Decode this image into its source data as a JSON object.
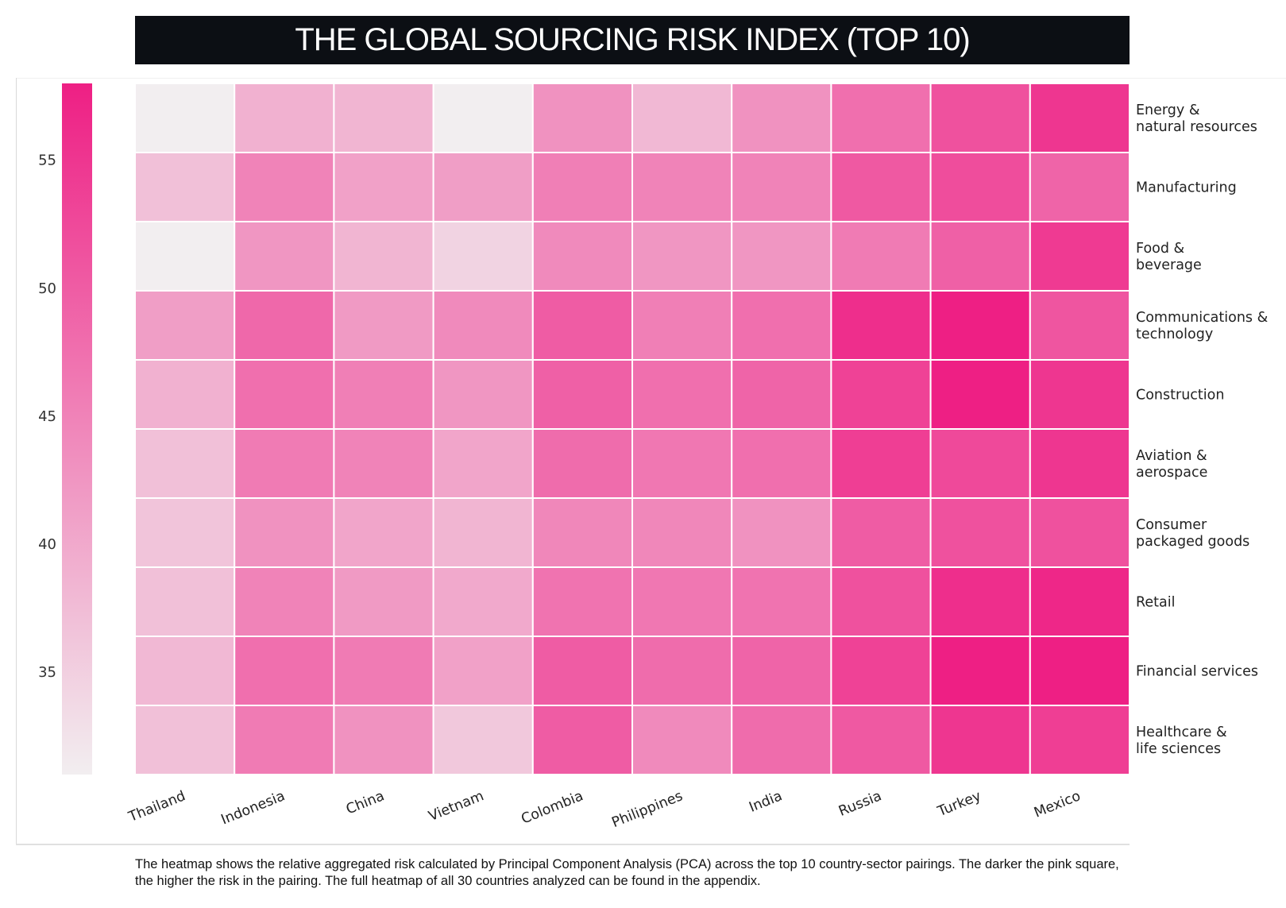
{
  "title": "THE GLOBAL SOURCING RISK INDEX (TOP 10)",
  "caption": "The heatmap shows the relative aggregated risk calculated by Principal Component Analysis (PCA) across the top 10 country-sector pairings. The darker the pink square, the higher the risk in the pairing. The full heatmap of all 30 countries analyzed can be found in the appendix.",
  "colors": {
    "low": "#f2eef0",
    "high": "#ee1f84"
  },
  "chart_data": {
    "type": "heatmap",
    "x_categories": [
      "Thailand",
      "Indonesia",
      "China",
      "Vietnam",
      "Colombia",
      "Philippines",
      "India",
      "Russia",
      "Turkey",
      "Mexico"
    ],
    "y_categories": [
      [
        "Energy &",
        "natural resources"
      ],
      [
        "Manufacturing"
      ],
      [
        "Food &",
        "beverage"
      ],
      [
        "Communications &",
        "technology"
      ],
      [
        "Construction"
      ],
      [
        "Aviation &",
        "aerospace"
      ],
      [
        "Consumer",
        "packaged goods"
      ],
      [
        "Retail"
      ],
      [
        "Financial services"
      ],
      [
        "Healthcare &",
        "life sciences"
      ]
    ],
    "values": [
      [
        30.5,
        39.0,
        38.5,
        30.5,
        43.0,
        38.0,
        43.0,
        47.5,
        51.5,
        55.0
      ],
      [
        37.0,
        45.0,
        41.0,
        41.5,
        45.5,
        45.0,
        45.0,
        50.5,
        52.0,
        49.0
      ],
      [
        31.0,
        42.5,
        38.5,
        34.5,
        44.0,
        42.5,
        42.5,
        46.0,
        49.5,
        54.5
      ],
      [
        41.5,
        48.5,
        42.0,
        44.0,
        50.0,
        45.5,
        47.5,
        56.0,
        59.5,
        51.0
      ],
      [
        39.0,
        47.5,
        45.5,
        42.5,
        49.5,
        47.5,
        49.0,
        53.5,
        59.0,
        55.0
      ],
      [
        37.0,
        46.0,
        45.0,
        40.5,
        48.0,
        46.5,
        47.5,
        54.0,
        52.5,
        55.0
      ],
      [
        36.5,
        43.0,
        40.5,
        38.5,
        44.5,
        44.5,
        43.0,
        50.0,
        51.5,
        51.5
      ],
      [
        37.0,
        45.0,
        42.0,
        40.0,
        47.0,
        46.5,
        47.0,
        51.5,
        56.0,
        57.0
      ],
      [
        38.0,
        47.5,
        46.0,
        41.0,
        50.0,
        48.0,
        49.0,
        53.5,
        60.0,
        60.0
      ],
      [
        37.0,
        46.0,
        43.0,
        36.0,
        50.0,
        44.0,
        48.0,
        50.5,
        55.0,
        54.0
      ]
    ],
    "colorbar": {
      "ticks": [
        35,
        40,
        45,
        50,
        55
      ],
      "range": [
        31,
        58
      ]
    }
  }
}
